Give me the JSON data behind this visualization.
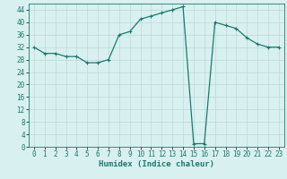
{
  "x": [
    0,
    1,
    2,
    3,
    4,
    5,
    6,
    7,
    8,
    9,
    10,
    11,
    12,
    13,
    14,
    15,
    16,
    17,
    18,
    19,
    20,
    21,
    22,
    23
  ],
  "y": [
    32,
    30,
    30,
    29,
    29,
    27,
    27,
    28,
    36,
    37,
    41,
    42,
    43,
    44,
    45,
    1,
    1,
    40,
    39,
    38,
    35,
    33,
    32,
    32
  ],
  "line_color": "#1a7a6e",
  "marker": "+",
  "marker_size": 3,
  "marker_linewidth": 0.8,
  "line_width": 0.9,
  "bg_color": "#d9f0f0",
  "grid_color": "#b8dada",
  "xlabel": "Humidex (Indice chaleur)",
  "ylim": [
    0,
    46
  ],
  "xlim": [
    -0.5,
    23.5
  ],
  "yticks": [
    0,
    4,
    8,
    12,
    16,
    20,
    24,
    28,
    32,
    36,
    40,
    44
  ],
  "xticks": [
    0,
    1,
    2,
    3,
    4,
    5,
    6,
    7,
    8,
    9,
    10,
    11,
    12,
    13,
    14,
    15,
    16,
    17,
    18,
    19,
    20,
    21,
    22,
    23
  ],
  "tick_label_fontsize": 5.5,
  "xlabel_fontsize": 6.5
}
